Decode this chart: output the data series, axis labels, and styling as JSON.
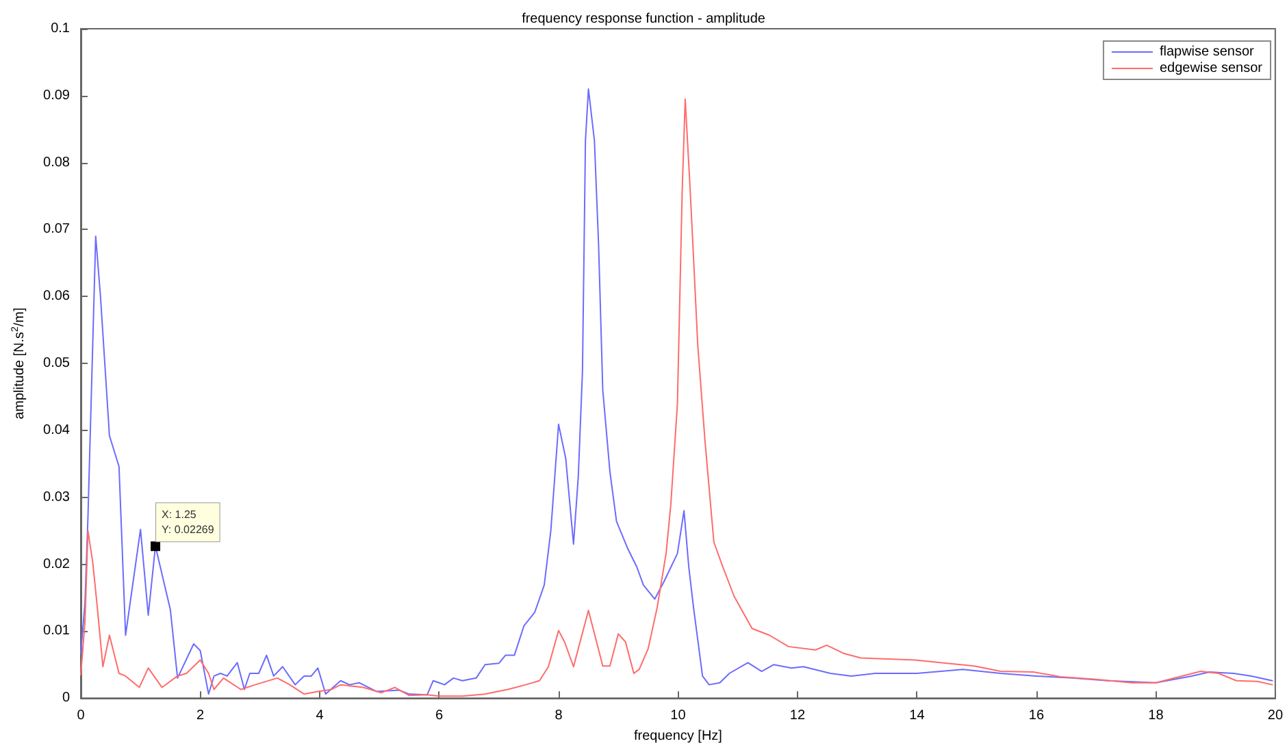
{
  "chart_data": {
    "type": "line",
    "title": "frequency response function - amplitude",
    "xlabel": "frequency [Hz]",
    "ylabel": "amplitude [N.s$^{2}$/m]",
    "xlim": [
      0,
      20
    ],
    "xticks": [
      0,
      2,
      4,
      6,
      8,
      10,
      12,
      14,
      16,
      18,
      20
    ],
    "ylim": [
      0,
      0.1
    ],
    "yticks": [
      0,
      0.01,
      0.02,
      0.03,
      0.04,
      0.05,
      0.06,
      0.07,
      0.08,
      0.09,
      0.1
    ],
    "grid": false,
    "legend": "top right",
    "marker": "none",
    "line_style": "solid",
    "annotations": [
      {
        "text": "X: 1.25\nY: 0.02269",
        "x": 1.25,
        "y": 0.02269
      }
    ],
    "series": [
      {
        "name": "flapwise sensor",
        "color": "#6b6bff",
        "x": [
          0,
          0.07,
          0.12,
          0.25,
          0.33,
          0.48,
          0.64,
          0.75,
          1.0,
          1.13,
          1.25,
          1.5,
          1.62,
          1.89,
          2.0,
          2.14,
          2.23,
          2.34,
          2.45,
          2.62,
          2.74,
          2.83,
          2.98,
          3.11,
          3.23,
          3.38,
          3.59,
          3.74,
          3.86,
          3.97,
          4.1,
          4.35,
          4.5,
          4.66,
          4.95,
          5.33,
          5.5,
          5.8,
          5.9,
          6.0,
          6.09,
          6.24,
          6.39,
          6.62,
          6.77,
          7.0,
          7.11,
          7.26,
          7.42,
          7.6,
          7.76,
          7.87,
          8.0,
          8.12,
          8.25,
          8.33,
          8.4,
          8.45,
          8.5,
          8.6,
          8.67,
          8.74,
          8.86,
          8.97,
          9.16,
          9.31,
          9.42,
          9.61,
          9.77,
          9.99,
          10.1,
          10.18,
          10.26,
          10.41,
          10.52,
          10.7,
          10.86,
          11.17,
          11.4,
          11.6,
          11.9,
          12.1,
          12.55,
          12.9,
          13.3,
          14.0,
          14.77,
          15.4,
          16.0,
          16.6,
          17.2,
          18.0,
          18.6,
          18.9,
          19.3,
          19.6,
          19.95
        ],
        "values": [
          0.0067,
          0.0142,
          0.027,
          0.069,
          0.06,
          0.0392,
          0.0346,
          0.0094,
          0.0252,
          0.0124,
          0.0227,
          0.0132,
          0.003,
          0.0081,
          0.0071,
          0.0006,
          0.0033,
          0.0037,
          0.0033,
          0.0053,
          0.0013,
          0.0037,
          0.0037,
          0.0064,
          0.0033,
          0.0047,
          0.002,
          0.0033,
          0.0033,
          0.0045,
          0.0006,
          0.0026,
          0.002,
          0.0023,
          0.001,
          0.0012,
          0.0006,
          0.0005,
          0.0026,
          0.0023,
          0.002,
          0.003,
          0.0026,
          0.003,
          0.005,
          0.0052,
          0.0064,
          0.0064,
          0.0108,
          0.0128,
          0.0169,
          0.025,
          0.0409,
          0.0358,
          0.023,
          0.0331,
          0.0488,
          0.0833,
          0.091,
          0.0833,
          0.0677,
          0.046,
          0.0338,
          0.0264,
          0.0223,
          0.0196,
          0.0169,
          0.0148,
          0.0175,
          0.0216,
          0.028,
          0.0196,
          0.0135,
          0.0033,
          0.002,
          0.0023,
          0.0037,
          0.0053,
          0.004,
          0.005,
          0.0045,
          0.0047,
          0.0037,
          0.0033,
          0.0037,
          0.0037,
          0.0043,
          0.0037,
          0.0033,
          0.003,
          0.0026,
          0.0023,
          0.0033,
          0.0039,
          0.0037,
          0.0033,
          0.0026
        ]
      },
      {
        "name": "edgewise sensor",
        "color": "#ff6b6b",
        "x": [
          0,
          0.07,
          0.12,
          0.2,
          0.27,
          0.37,
          0.48,
          0.64,
          0.75,
          0.98,
          1.13,
          1.36,
          1.62,
          1.77,
          2.0,
          2.14,
          2.23,
          2.39,
          2.68,
          2.92,
          3.29,
          3.5,
          3.74,
          3.97,
          4.2,
          4.35,
          4.73,
          5.03,
          5.26,
          5.5,
          5.8,
          6.0,
          6.39,
          6.77,
          7.15,
          7.45,
          7.68,
          7.83,
          8.0,
          8.1,
          8.25,
          8.5,
          8.74,
          8.86,
          9.0,
          9.12,
          9.26,
          9.35,
          9.5,
          9.65,
          9.8,
          9.88,
          9.99,
          10.07,
          10.12,
          10.2,
          10.26,
          10.33,
          10.45,
          10.6,
          10.75,
          10.94,
          11.24,
          11.53,
          11.85,
          12.3,
          12.49,
          12.77,
          13.06,
          13.97,
          14.5,
          14.96,
          15.4,
          15.95,
          16.4,
          17.0,
          17.6,
          18.0,
          18.75,
          19.05,
          19.35,
          19.7,
          19.95
        ],
        "values": [
          0.0035,
          0.0114,
          0.025,
          0.0203,
          0.0142,
          0.0047,
          0.0094,
          0.0037,
          0.0033,
          0.0016,
          0.0045,
          0.0016,
          0.0033,
          0.0037,
          0.0057,
          0.0037,
          0.0013,
          0.003,
          0.0013,
          0.002,
          0.003,
          0.002,
          0.0006,
          0.001,
          0.0013,
          0.002,
          0.0016,
          0.0008,
          0.0016,
          0.0004,
          0.0005,
          0.0003,
          0.0003,
          0.0006,
          0.0013,
          0.002,
          0.0026,
          0.0047,
          0.0101,
          0.0084,
          0.0047,
          0.0131,
          0.0048,
          0.0048,
          0.0096,
          0.0084,
          0.0037,
          0.0043,
          0.0074,
          0.0135,
          0.0216,
          0.029,
          0.044,
          0.0758,
          0.0895,
          0.0765,
          0.0657,
          0.0528,
          0.0386,
          0.0233,
          0.0196,
          0.0152,
          0.0104,
          0.0094,
          0.0077,
          0.0072,
          0.0079,
          0.0067,
          0.006,
          0.0057,
          0.0052,
          0.0048,
          0.004,
          0.0039,
          0.0032,
          0.0028,
          0.0023,
          0.0023,
          0.004,
          0.0037,
          0.0026,
          0.0025,
          0.002
        ]
      }
    ]
  }
}
